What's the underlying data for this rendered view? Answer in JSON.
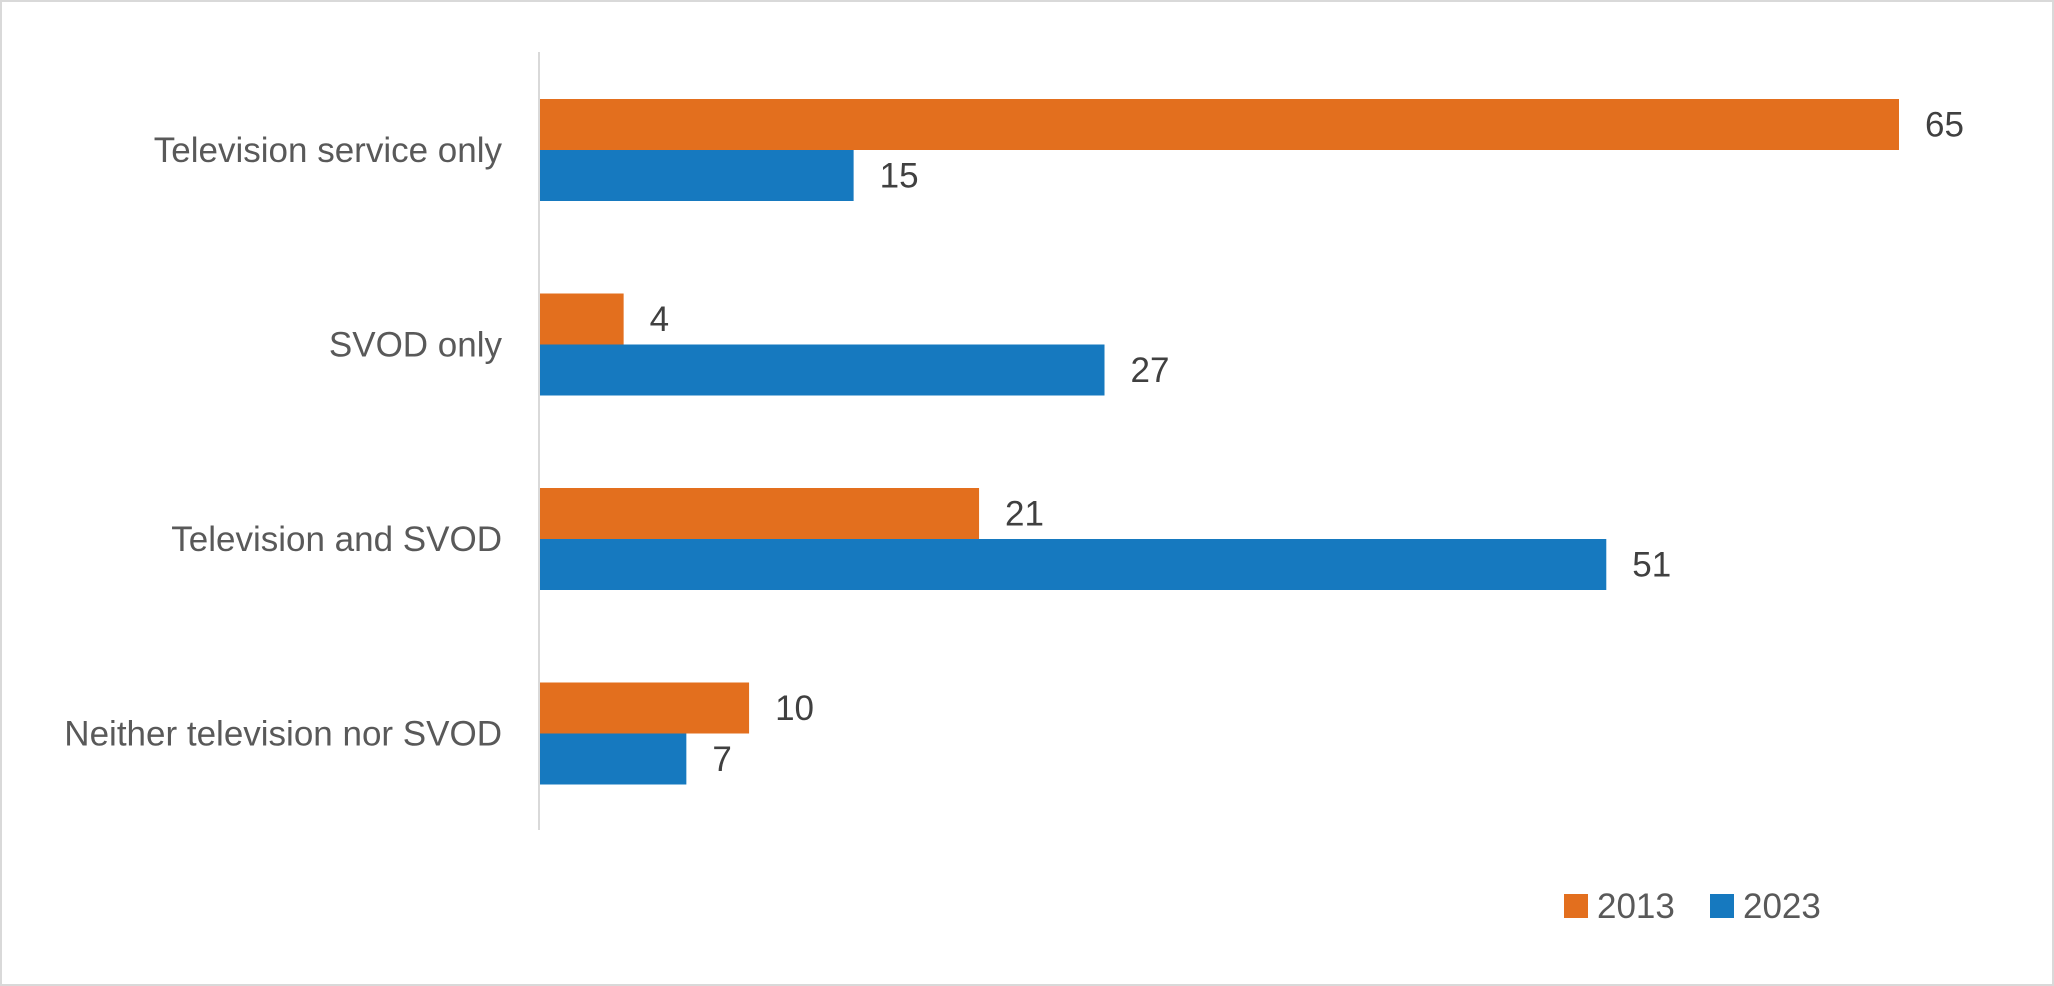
{
  "chart_data": {
    "type": "bar",
    "orientation": "horizontal",
    "title": "",
    "xlabel": "",
    "ylabel": "",
    "categories": [
      "Television service only",
      "SVOD only",
      "Television and SVOD",
      "Neither television nor SVOD"
    ],
    "series": [
      {
        "name": "2013",
        "color": "#E36F1E",
        "values": [
          65,
          4,
          21,
          10
        ]
      },
      {
        "name": "2023",
        "color": "#1679BF",
        "values": [
          15,
          27,
          51,
          7
        ]
      }
    ],
    "xlim": [
      0,
      65
    ],
    "grid": false,
    "data_labels": true,
    "legend_position": "bottom-right",
    "axis_color": "#d9d9d9"
  }
}
